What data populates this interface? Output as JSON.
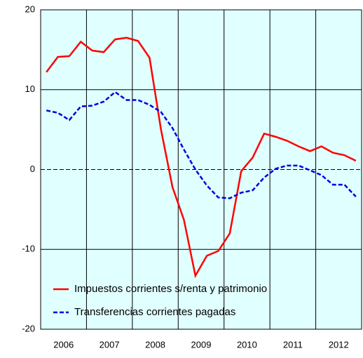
{
  "chart_data": {
    "type": "line",
    "x": [
      2006.125,
      2006.375,
      2006.625,
      2006.875,
      2007.125,
      2007.375,
      2007.625,
      2007.875,
      2008.125,
      2008.375,
      2008.625,
      2008.875,
      2009.125,
      2009.375,
      2009.625,
      2009.875,
      2010.125,
      2010.375,
      2010.625,
      2010.875,
      2011.125,
      2011.375,
      2011.625,
      2011.875,
      2012.125,
      2012.375,
      2012.625,
      2012.875
    ],
    "series": [
      {
        "name": "Impuestos corrientes s/renta y patrimonio",
        "color": "#ff0000",
        "dash": false,
        "values": [
          12.2,
          14.1,
          14.2,
          16.0,
          14.9,
          14.7,
          16.3,
          16.5,
          16.1,
          14.0,
          5.0,
          -2.2,
          -6.3,
          -13.3,
          -10.8,
          -10.2,
          -8.0,
          -0.2,
          1.5,
          4.5,
          4.1,
          3.6,
          2.9,
          2.3,
          2.9,
          2.1,
          1.8,
          1.1
        ]
      },
      {
        "name": "Transferencias corrientes pagadas",
        "color": "#0000dd",
        "dash": true,
        "values": [
          7.4,
          7.1,
          6.2,
          7.9,
          8.0,
          8.5,
          9.7,
          8.7,
          8.7,
          8.1,
          7.2,
          5.2,
          2.5,
          0.0,
          -2.0,
          -3.5,
          -3.6,
          -2.9,
          -2.6,
          -1.0,
          0.1,
          0.5,
          0.5,
          -0.1,
          -0.7,
          -1.9,
          -1.9,
          -3.4
        ]
      }
    ],
    "xlim": [
      2006,
      2013
    ],
    "xticks": [
      {
        "value": 2006.5,
        "label": "2006"
      },
      {
        "value": 2007.5,
        "label": "2007"
      },
      {
        "value": 2008.5,
        "label": "2008"
      },
      {
        "value": 2009.5,
        "label": "2009"
      },
      {
        "value": 2010.5,
        "label": "2010"
      },
      {
        "value": 2011.5,
        "label": "2011"
      },
      {
        "value": 2012.5,
        "label": "2012"
      }
    ],
    "x_grid": [
      2007,
      2008,
      2009,
      2010,
      2011,
      2012
    ],
    "ylim": [
      -20,
      20
    ],
    "yticks": [
      -20,
      -10,
      0,
      10,
      20
    ],
    "grid": true,
    "legend": "lower left",
    "plot_background": "#e0ffff"
  }
}
